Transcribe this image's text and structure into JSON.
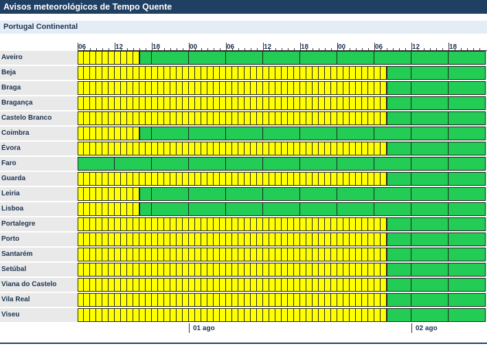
{
  "window": {
    "title": "Avisos meteorológicos de Tempo Quente"
  },
  "region": {
    "name": "Portugal Continental"
  },
  "timeline": {
    "hour_labels": [
      "06",
      "12",
      "18",
      "00",
      "06",
      "12",
      "18",
      "00",
      "06",
      "12",
      "18"
    ],
    "day_labels": [
      "01 ago",
      "02 ago"
    ]
  },
  "legend_colors": {
    "yellow": "#ffff00",
    "green": "#22cc55"
  },
  "rows": [
    {
      "name": "Aveiro",
      "yellow_slots": 10
    },
    {
      "name": "Beja",
      "yellow_slots": 50
    },
    {
      "name": "Braga",
      "yellow_slots": 50
    },
    {
      "name": "Bragança",
      "yellow_slots": 50
    },
    {
      "name": "Castelo Branco",
      "yellow_slots": 50
    },
    {
      "name": "Coimbra",
      "yellow_slots": 10
    },
    {
      "name": "Évora",
      "yellow_slots": 50
    },
    {
      "name": "Faro",
      "yellow_slots": 0
    },
    {
      "name": "Guarda",
      "yellow_slots": 50
    },
    {
      "name": "Leiria",
      "yellow_slots": 10
    },
    {
      "name": "Lisboa",
      "yellow_slots": 10
    },
    {
      "name": "Portalegre",
      "yellow_slots": 50
    },
    {
      "name": "Porto",
      "yellow_slots": 50
    },
    {
      "name": "Santarém",
      "yellow_slots": 50
    },
    {
      "name": "Setúbal",
      "yellow_slots": 50
    },
    {
      "name": "Viana do Castelo",
      "yellow_slots": 50
    },
    {
      "name": "Vila Real",
      "yellow_slots": 50
    },
    {
      "name": "Viseu",
      "yellow_slots": 50
    }
  ]
}
